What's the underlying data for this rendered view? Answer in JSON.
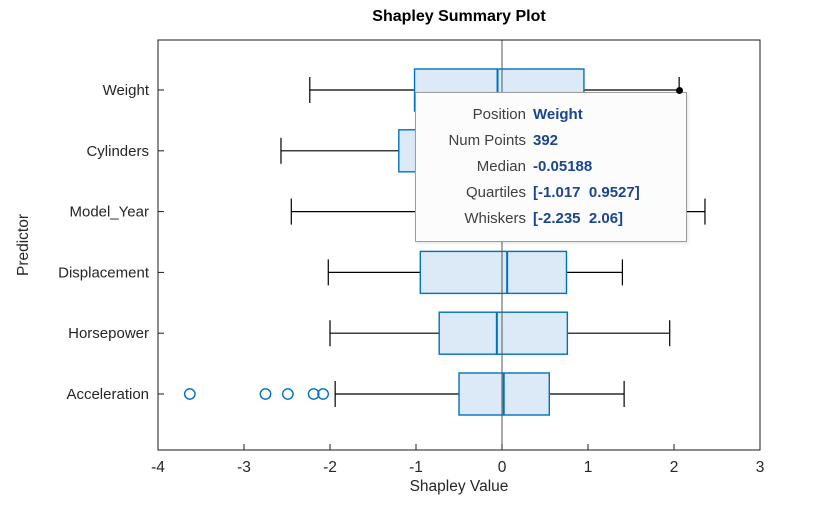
{
  "chart_data": {
    "type": "boxplot",
    "orientation": "horizontal",
    "title": "Shapley Summary Plot",
    "xlabel": "Shapley Value",
    "ylabel": "Predictor",
    "xlim": [
      -4,
      3
    ],
    "xticks": [
      -4,
      -3,
      -2,
      -1,
      0,
      1,
      2,
      3
    ],
    "zero_line_x": 0,
    "grid": false,
    "categories": [
      "Weight",
      "Cylinders",
      "Model_Year",
      "Displacement",
      "Horsepower",
      "Acceleration"
    ],
    "boxes": [
      {
        "label": "Weight",
        "q1": -1.017,
        "median": -0.05188,
        "q3": 0.9527,
        "whisker_low": -2.235,
        "whisker_high": 2.06,
        "outliers": []
      },
      {
        "label": "Cylinders",
        "q1": -1.2,
        "median": -0.3,
        "q3": 0.3,
        "whisker_low": -2.57,
        "whisker_high": 1.5,
        "outliers": []
      },
      {
        "label": "Model_Year",
        "q1": -1.0,
        "median": 0.0,
        "q3": 0.8,
        "whisker_low": -2.45,
        "whisker_high": 2.36,
        "outliers": []
      },
      {
        "label": "Displacement",
        "q1": -0.95,
        "median": 0.06,
        "q3": 0.75,
        "whisker_low": -2.02,
        "whisker_high": 1.4,
        "outliers": []
      },
      {
        "label": "Horsepower",
        "q1": -0.73,
        "median": -0.06,
        "q3": 0.76,
        "whisker_low": -2.0,
        "whisker_high": 1.95,
        "outliers": []
      },
      {
        "label": "Acceleration",
        "q1": -0.5,
        "median": 0.02,
        "q3": 0.55,
        "whisker_low": -1.94,
        "whisker_high": 1.42,
        "outliers": [
          -3.63,
          -2.75,
          -2.49,
          -2.19,
          -2.08
        ]
      }
    ],
    "colors": {
      "box_edge": "#0072BD",
      "box_fill": "#DCE9F7",
      "median": "#0072BD",
      "whisker": "#000000",
      "outlier": "#0072BD",
      "zero_line": "#555555",
      "axis": "#1a1a1a",
      "tick_text": "#262626",
      "marker": "#000000"
    }
  },
  "datatip": {
    "rows": [
      {
        "label": "Position",
        "value": "Weight"
      },
      {
        "label": "Num Points",
        "value": "392"
      },
      {
        "label": "Median",
        "value": "-0.05188"
      },
      {
        "label": "Quartiles",
        "value": "[-1.017  0.9527]"
      },
      {
        "label": "Whiskers",
        "value": "[-2.235  2.06]"
      }
    ],
    "value_color": "#1B458F",
    "anchor": {
      "x": 2.06,
      "category": "Weight"
    }
  }
}
